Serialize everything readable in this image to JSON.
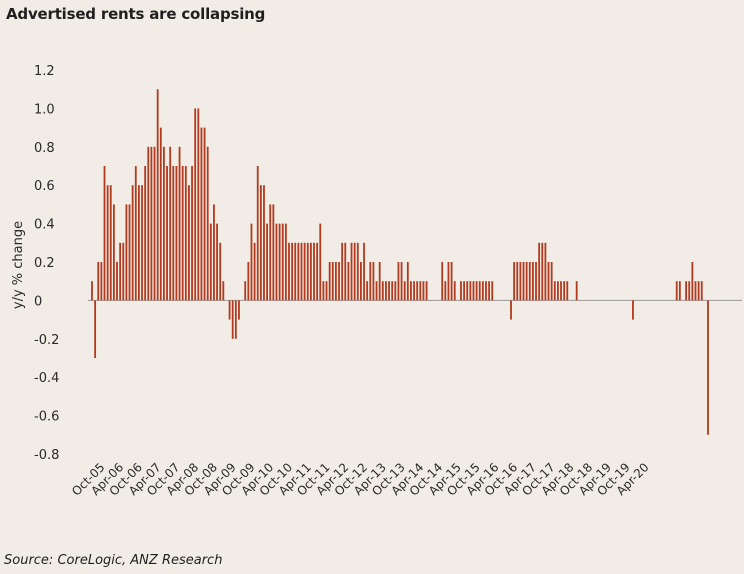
{
  "chart_data": {
    "type": "bar",
    "title": "Advertised rents are collapsing",
    "ylabel": "y/y % change",
    "xlabel": "",
    "ylim": [
      -0.8,
      1.2
    ],
    "yticks": [
      1.2,
      1.0,
      0.8,
      0.6,
      0.4,
      0.2,
      0,
      -0.2,
      -0.4,
      -0.6,
      -0.8
    ],
    "ytick_labels": [
      "1.2",
      "1.0",
      "0.8",
      "0.6",
      "0.4",
      "0.2",
      "0",
      "-0.2",
      "-0.4",
      "-0.6",
      "-0.8"
    ],
    "x_tick_labels": [
      "Oct-05",
      "Apr-06",
      "Oct-06",
      "Apr-07",
      "Oct-07",
      "Apr-08",
      "Oct-08",
      "Apr-09",
      "Oct-09",
      "Apr-10",
      "Oct-10",
      "Apr-11",
      "Oct-11",
      "Apr-12",
      "Oct-12",
      "Apr-13",
      "Oct-13",
      "Apr-14",
      "Oct-14",
      "Apr-15",
      "Oct-15",
      "Apr-16",
      "Oct-16",
      "Apr-17",
      "Oct-17",
      "Apr-18",
      "Oct-18",
      "Apr-19",
      "Oct-19",
      "Apr-20"
    ],
    "series": [
      {
        "color": "#b23a1e",
        "start": "Jul-05",
        "frequency": "monthly",
        "values": [
          0.1,
          -0.3,
          0.2,
          0.2,
          0.7,
          0.6,
          0.6,
          0.5,
          0.2,
          0.3,
          0.3,
          0.5,
          0.5,
          0.6,
          0.7,
          0.6,
          0.6,
          0.7,
          0.8,
          0.8,
          0.8,
          1.1,
          0.9,
          0.8,
          0.7,
          0.8,
          0.7,
          0.7,
          0.8,
          0.7,
          0.7,
          0.6,
          0.7,
          1.0,
          1.0,
          0.9,
          0.9,
          0.8,
          0.4,
          0.5,
          0.4,
          0.3,
          0.1,
          0.0,
          -0.1,
          -0.2,
          -0.2,
          -0.1,
          0.0,
          0.1,
          0.2,
          0.4,
          0.3,
          0.7,
          0.6,
          0.6,
          0.4,
          0.5,
          0.5,
          0.4,
          0.4,
          0.4,
          0.4,
          0.3,
          0.3,
          0.3,
          0.3,
          0.3,
          0.3,
          0.3,
          0.3,
          0.3,
          0.3,
          0.4,
          0.1,
          0.1,
          0.2,
          0.2,
          0.2,
          0.2,
          0.3,
          0.3,
          0.2,
          0.3,
          0.3,
          0.3,
          0.2,
          0.3,
          0.1,
          0.2,
          0.2,
          0.1,
          0.2,
          0.1,
          0.1,
          0.1,
          0.1,
          0.1,
          0.2,
          0.2,
          0.1,
          0.2,
          0.1,
          0.1,
          0.1,
          0.1,
          0.1,
          0.1,
          0.0,
          0.0,
          0.0,
          0.0,
          0.2,
          0.1,
          0.2,
          0.2,
          0.1,
          0.0,
          0.1,
          0.1,
          0.1,
          0.1,
          0.1,
          0.1,
          0.1,
          0.1,
          0.1,
          0.1,
          0.1,
          0.0,
          0.0,
          0.0,
          0.0,
          0.0,
          -0.1,
          0.2,
          0.2,
          0.2,
          0.2,
          0.2,
          0.2,
          0.2,
          0.2,
          0.3,
          0.3,
          0.3,
          0.2,
          0.2,
          0.1,
          0.1,
          0.1,
          0.1,
          0.1,
          0.0,
          0.0,
          0.1,
          0.0,
          0.0,
          0.0,
          0.0,
          0.0,
          0.0,
          0.0,
          0.0,
          0.0,
          0.0,
          0.0,
          0.0,
          0.0,
          0.0,
          0.0,
          0.0,
          0.0,
          -0.1,
          0.0,
          0.0,
          0.0,
          0.0,
          0.0,
          0.0,
          0.0,
          0.0,
          0.0,
          0.0,
          0.0,
          0.0,
          0.0,
          0.1,
          0.1,
          0.0,
          0.1,
          0.1,
          0.2,
          0.1,
          0.1,
          0.1,
          0.0,
          -0.7
        ]
      }
    ],
    "grid": false,
    "legend": "none",
    "source": "Source: CoreLogic, ANZ Research"
  }
}
